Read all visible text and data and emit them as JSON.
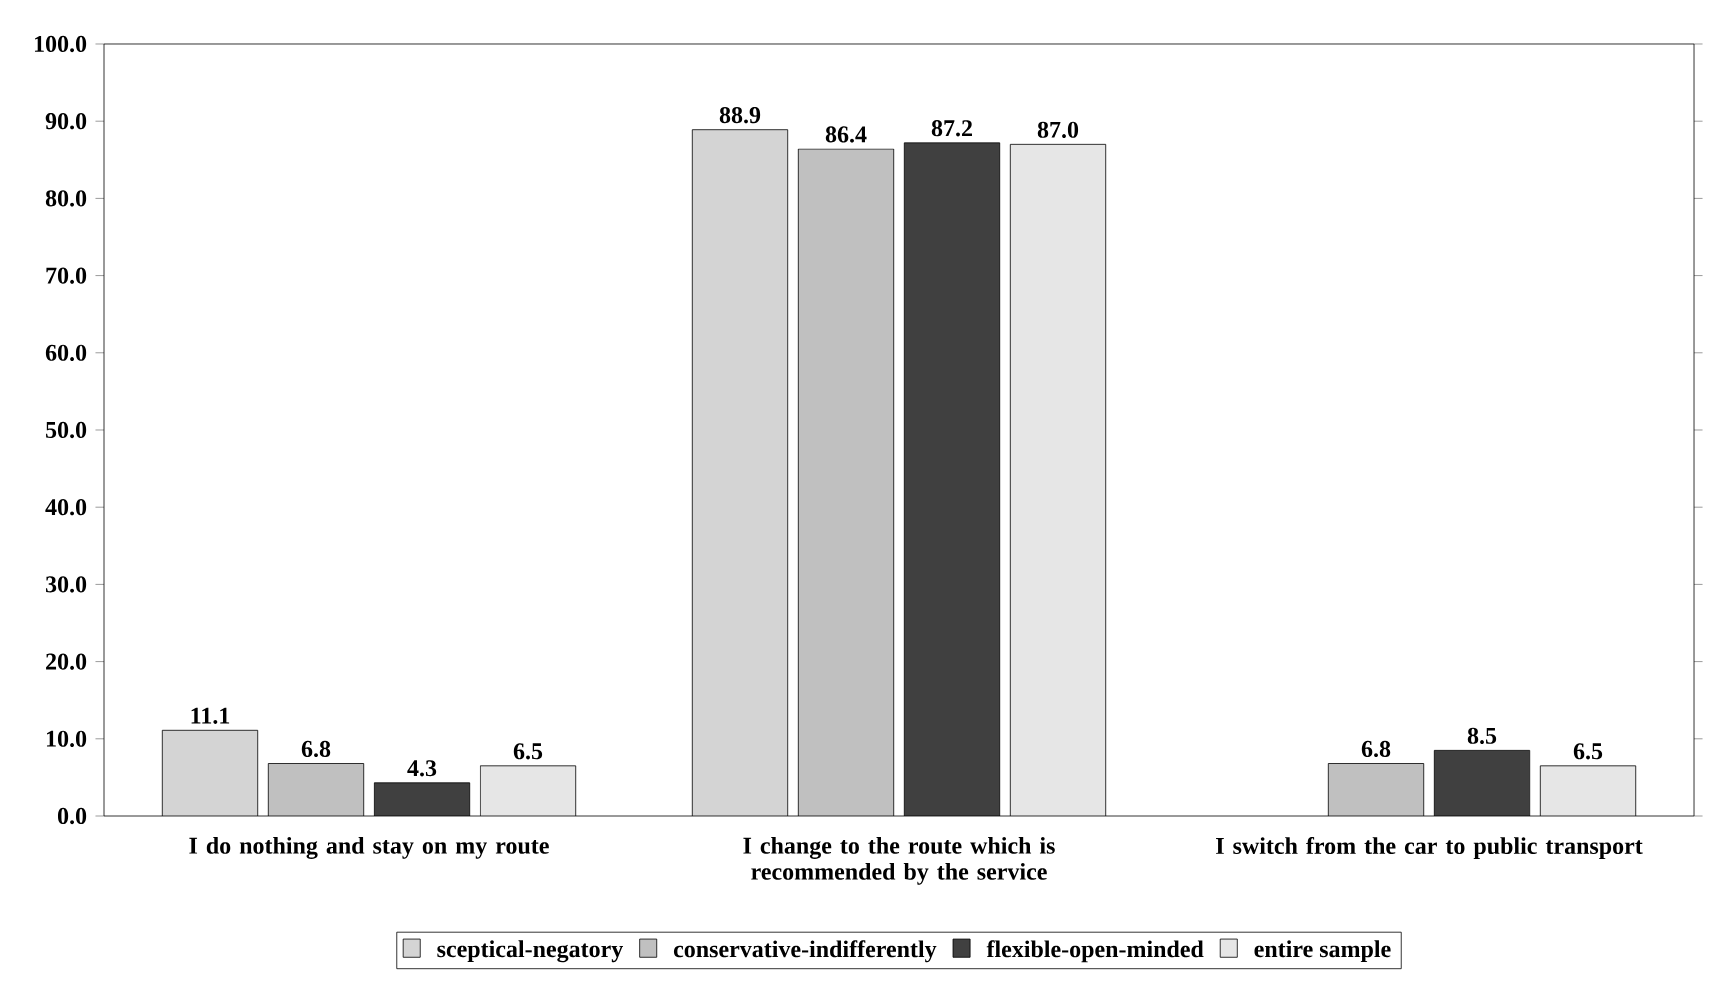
{
  "chart_data": {
    "type": "bar",
    "categories": [
      "I do nothing and stay on my route",
      "I change to the route which is recommended by the service",
      "I switch from the car to public transport"
    ],
    "series": [
      {
        "name": "sceptical-negatory",
        "color": "#d4d4d4",
        "values": [
          11.1,
          88.9,
          null
        ],
        "value_labels": [
          "11.1",
          "88.9",
          null
        ]
      },
      {
        "name": "conservative-indifferently",
        "color": "#c0c0c0",
        "values": [
          6.8,
          86.4,
          6.8
        ],
        "value_labels": [
          "6.8",
          "86.4",
          "6.8"
        ]
      },
      {
        "name": "flexible-open-minded",
        "color": "#404040",
        "values": [
          4.3,
          87.2,
          8.5
        ],
        "value_labels": [
          "4.3",
          "87.2",
          "8.5"
        ]
      },
      {
        "name": "entire sample",
        "color": "#e6e6e6",
        "values": [
          6.5,
          87.0,
          6.5
        ],
        "value_labels": [
          "6.5",
          "87.0",
          "6.5"
        ]
      }
    ],
    "ylim": [
      0,
      100
    ],
    "yticks": [
      {
        "value": 0,
        "label": "0.0"
      },
      {
        "value": 10,
        "label": "10.0"
      },
      {
        "value": 20,
        "label": "20.0"
      },
      {
        "value": 30,
        "label": "30.0"
      },
      {
        "value": 40,
        "label": "40.0"
      },
      {
        "value": 50,
        "label": "50.0"
      },
      {
        "value": 60,
        "label": "60.0"
      },
      {
        "value": 70,
        "label": "70.0"
      },
      {
        "value": 80,
        "label": "80.0"
      },
      {
        "value": 90,
        "label": "90.0"
      },
      {
        "value": 100,
        "label": "100.0"
      }
    ],
    "grid": false,
    "legend": "bottom"
  }
}
